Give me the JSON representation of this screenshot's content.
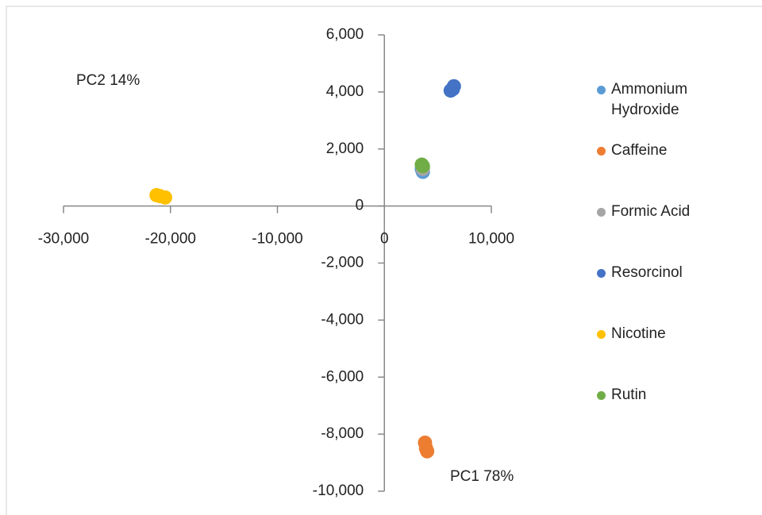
{
  "chart_data": {
    "type": "scatter",
    "annotations": [
      "PC2  14%",
      "PC1  78%"
    ],
    "xlim": [
      -30000,
      10000
    ],
    "ylim": [
      -10000,
      6000
    ],
    "xticks": [
      {
        "value": -30000,
        "label": "-30,000"
      },
      {
        "value": -20000,
        "label": "-20,000"
      },
      {
        "value": -10000,
        "label": "-10,000"
      },
      0,
      {
        "value": 10000,
        "label": "10,000"
      }
    ],
    "yticks": [
      {
        "value": -10000,
        "label": "-10,000"
      },
      {
        "value": -8000,
        "label": "-8,000"
      },
      {
        "value": -6000,
        "label": "-6,000"
      },
      {
        "value": -4000,
        "label": "-4,000"
      },
      {
        "value": -2000,
        "label": "-2,000"
      },
      0,
      {
        "value": 2000,
        "label": "2,000"
      },
      {
        "value": 4000,
        "label": "4,000"
      },
      {
        "value": 6000,
        "label": "6,000"
      }
    ],
    "legend": "right",
    "series": [
      {
        "name": "Ammonium Hydroxide",
        "color": "#5b9bd5",
        "x": [
          3600,
          3500
        ],
        "values": [
          1200,
          1300
        ]
      },
      {
        "name": "Caffeine",
        "color": "#ed7d31",
        "x": [
          3800,
          4000,
          3900
        ],
        "values": [
          -8300,
          -8600,
          -8500
        ]
      },
      {
        "name": "Formic Acid",
        "color": "#a5a5a5",
        "x": [
          3600
        ],
        "values": [
          1300
        ]
      },
      {
        "name": "Resorcinol",
        "color": "#4472c4",
        "x": [
          6200,
          6500,
          6400
        ],
        "values": [
          4050,
          4200,
          4100
        ]
      },
      {
        "name": "Nicotine",
        "color": "#ffc000",
        "x": [
          -21000,
          -20500,
          -21300
        ],
        "values": [
          350,
          300,
          380
        ]
      },
      {
        "name": "Rutin",
        "color": "#70ad47",
        "x": [
          3500,
          3600
        ],
        "values": [
          1450,
          1400
        ]
      }
    ]
  }
}
